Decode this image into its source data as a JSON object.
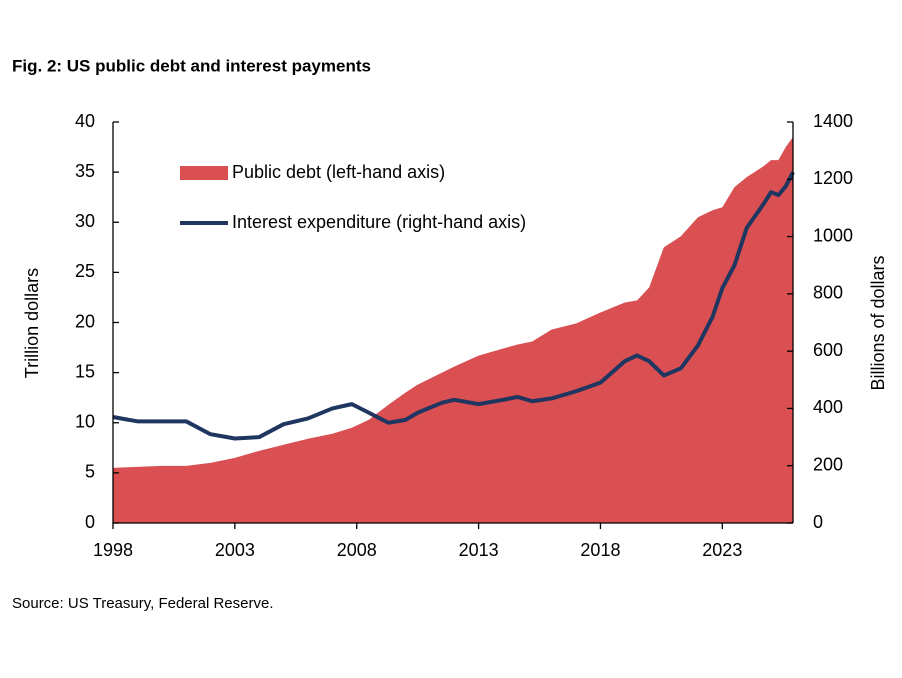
{
  "chart_data": {
    "type": "area",
    "title": "Fig. 2: US public debt and interest payments",
    "source": "Source: US Treasury, Federal Reserve.",
    "ylabel": "Trillion dollars",
    "y2label": "Billions of dollars",
    "x": [
      1998,
      1999,
      2000,
      2001,
      2002,
      2003,
      2004,
      2005,
      2006,
      2007,
      2007.8,
      2008.5,
      2009.3,
      2010,
      2010.5,
      2011.5,
      2012,
      2013,
      2014,
      2014.6,
      2015.2,
      2016,
      2017,
      2018,
      2019,
      2019.5,
      2020,
      2020.6,
      2021.3,
      2022,
      2022.6,
      2023,
      2023.5,
      2024,
      2024.7,
      2025,
      2025.3,
      2025.6,
      2025.9
    ],
    "series": [
      {
        "name": "Public debt (left-hand axis)",
        "type": "area",
        "color": "#d94f52",
        "values": [
          5.5,
          5.6,
          5.7,
          5.7,
          6.0,
          6.5,
          7.2,
          7.8,
          8.4,
          8.9,
          9.5,
          10.3,
          11.8,
          13.0,
          13.8,
          15.0,
          15.6,
          16.7,
          17.4,
          17.8,
          18.1,
          19.3,
          19.9,
          21.0,
          22.0,
          22.2,
          23.5,
          27.5,
          28.6,
          30.5,
          31.2,
          31.5,
          33.5,
          34.5,
          35.6,
          36.2,
          36.2,
          37.5,
          38.5
        ]
      },
      {
        "name": "Interest expenditure (right-hand axis)",
        "type": "line",
        "axis": "y2",
        "color": "#1f3660",
        "values": [
          370,
          355,
          355,
          355,
          310,
          295,
          300,
          345,
          365,
          400,
          415,
          385,
          350,
          360,
          385,
          420,
          430,
          415,
          430,
          440,
          425,
          435,
          460,
          490,
          565,
          585,
          565,
          515,
          540,
          620,
          720,
          820,
          900,
          1030,
          1115,
          1155,
          1145,
          1175,
          1225
        ]
      }
    ],
    "xlim": [
      1998,
      2025.9
    ],
    "xticks": [
      1998,
      2003,
      2008,
      2013,
      2018,
      2023
    ],
    "ylim": [
      0,
      40
    ],
    "yticks": [
      0,
      5,
      10,
      15,
      20,
      25,
      30,
      35,
      40
    ],
    "y2lim": [
      0,
      1400
    ],
    "y2ticks": [
      0,
      200,
      400,
      600,
      800,
      1000,
      1200,
      1400
    ],
    "grid": false
  }
}
